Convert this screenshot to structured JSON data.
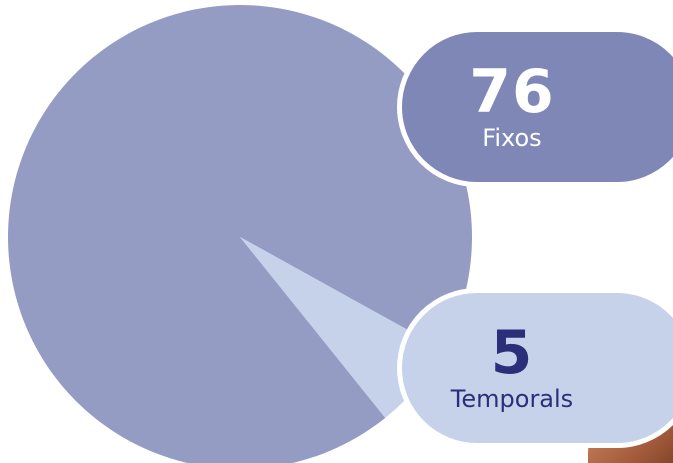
{
  "chart_data": {
    "type": "pie",
    "title": "",
    "slices": [
      {
        "label": "Fixos",
        "value": 76,
        "color": "#949cc4"
      },
      {
        "label": "Temporals",
        "value": 5,
        "color": "#c5d2ea"
      }
    ]
  },
  "labels": {
    "fixos": {
      "value": "76",
      "text": "Fixos",
      "color": "#7f87b6"
    },
    "temporals": {
      "value": "5",
      "text": "Temporals",
      "color": "#c5d2ea"
    }
  }
}
